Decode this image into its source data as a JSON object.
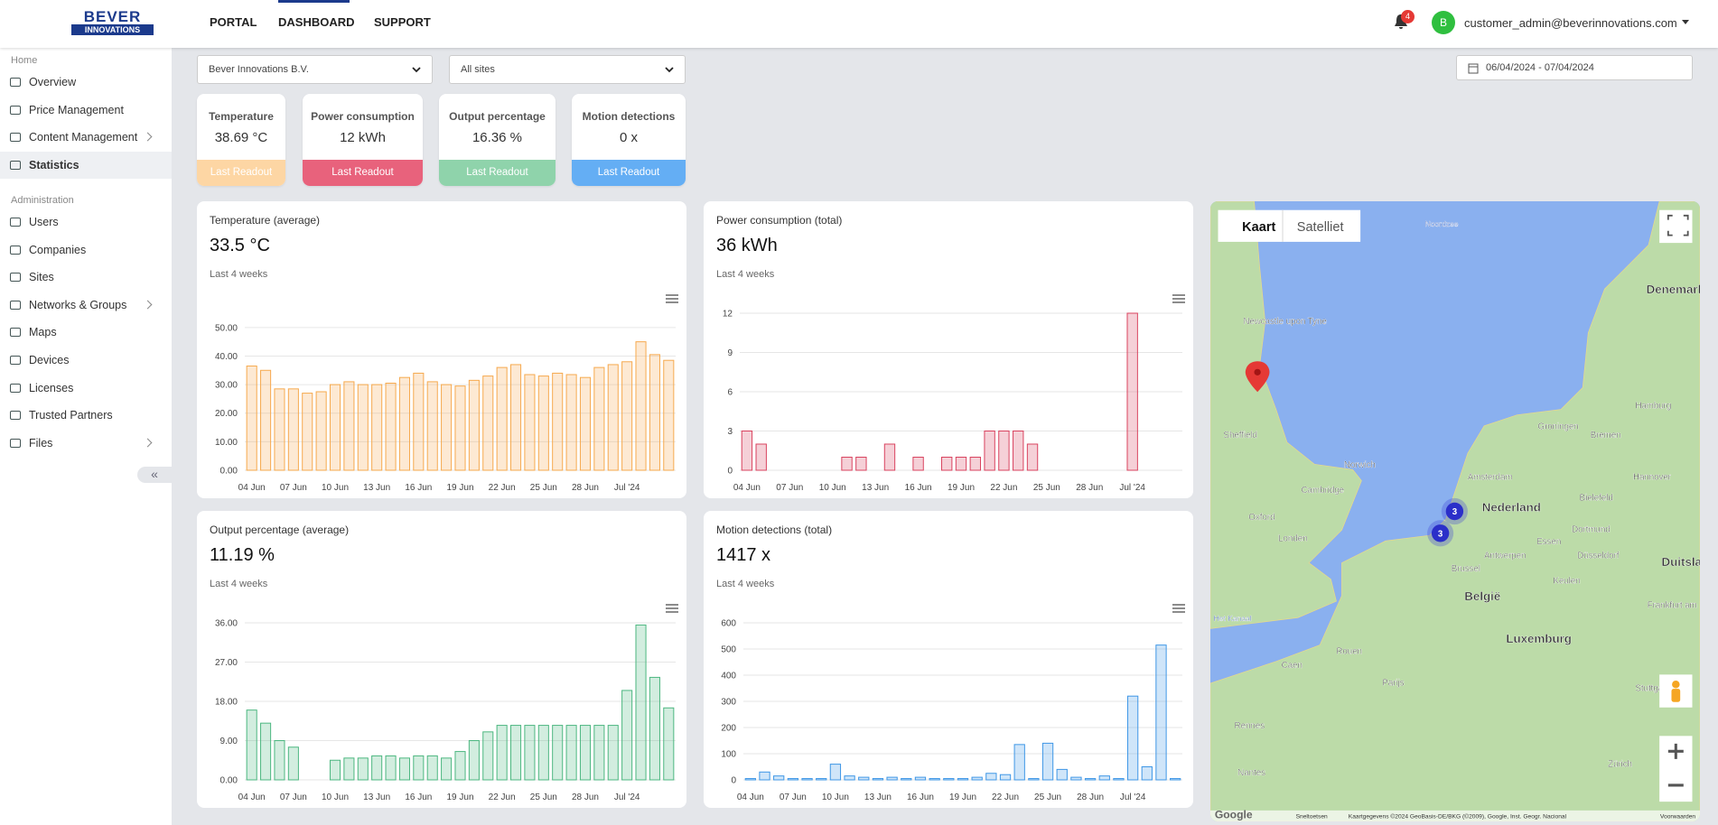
{
  "header": {
    "logo_line1": "BEVER",
    "logo_line2": "INNOVATIONS",
    "nav": [
      "PORTAL",
      "DASHBOARD",
      "SUPPORT"
    ],
    "notification_count": 4,
    "avatar": "B",
    "user": "customer_admin@beverinnovations.com"
  },
  "sidebar": {
    "sections": [
      {
        "title": "Home",
        "items": [
          "Overview",
          "Price Management",
          "Content Management",
          "Statistics"
        ]
      },
      {
        "title": "Administration",
        "items": [
          "Users",
          "Companies",
          "Sites",
          "Networks & Groups",
          "Maps",
          "Devices",
          "Licenses",
          "Trusted Partners",
          "Files"
        ]
      }
    ]
  },
  "filters": {
    "company": "Bever Innovations B.V.",
    "site": "All sites",
    "date_range": "06/04/2024 - 07/04/2024"
  },
  "cards": [
    {
      "title": "Temperature",
      "value": "38.69 °C",
      "footer": "Last Readout",
      "color": "#fdd6a4"
    },
    {
      "title": "Power consumption",
      "value": "12 kWh",
      "footer": "Last Readout",
      "color": "#e8627c"
    },
    {
      "title": "Output percentage",
      "value": "16.36 %",
      "footer": "Last Readout",
      "color": "#8fd3ab"
    },
    {
      "title": "Motion detections",
      "value": "0 x",
      "footer": "Last Readout",
      "color": "#64aef4"
    }
  ],
  "chart_data": [
    {
      "type": "bar",
      "title": "Temperature (average)",
      "headline": "33.5 °C",
      "subtitle": "Last 4 weeks",
      "color": "#f6a94e",
      "categories": [
        "04 Jun",
        null,
        null,
        "07 Jun",
        null,
        null,
        "10 Jun",
        null,
        null,
        "13 Jun",
        null,
        null,
        "16 Jun",
        null,
        null,
        "19 Jun",
        null,
        null,
        "22 Jun",
        null,
        null,
        "25 Jun",
        null,
        null,
        "28 Jun",
        null,
        null,
        "Jul '24",
        null,
        null,
        null
      ],
      "values": [
        36.5,
        35,
        28.5,
        28.5,
        27,
        27.5,
        30,
        31,
        30,
        30,
        30.5,
        32.5,
        34,
        31,
        30,
        29.5,
        31.5,
        33,
        36,
        37,
        33.5,
        33,
        34,
        33.5,
        32.5,
        36,
        37,
        38,
        45,
        40.5,
        38.5
      ],
      "ylim": [
        0,
        55
      ],
      "yticks": [
        {
          "value": 0,
          "label": "0.00"
        },
        {
          "value": 10,
          "label": "10.00"
        },
        {
          "value": 20,
          "label": "20.00"
        },
        {
          "value": 30,
          "label": "30.00"
        },
        {
          "value": 40,
          "label": "40.00"
        },
        {
          "value": 50,
          "label": "50.00"
        }
      ],
      "grid": true
    },
    {
      "type": "bar",
      "title": "Power consumption (total)",
      "headline": "36 kWh",
      "subtitle": "Last 4 weeks",
      "color": "#d9435f",
      "categories": [
        "04 Jun",
        null,
        null,
        "07 Jun",
        null,
        null,
        "10 Jun",
        null,
        null,
        "13 Jun",
        null,
        null,
        "16 Jun",
        null,
        null,
        "19 Jun",
        null,
        null,
        "22 Jun",
        null,
        null,
        "25 Jun",
        null,
        null,
        "28 Jun",
        null,
        null,
        "Jul '24",
        null,
        null,
        null
      ],
      "values": [
        3,
        2,
        0,
        0,
        0,
        0,
        0,
        1,
        1,
        0,
        2,
        0,
        1,
        0,
        1,
        1,
        1,
        3,
        3,
        3,
        2,
        0,
        0,
        0,
        0,
        0,
        0,
        12,
        0,
        0,
        0
      ],
      "ylim": [
        0,
        12
      ],
      "yticks": [
        0,
        3,
        6,
        9,
        12
      ],
      "grid": true
    },
    {
      "type": "bar",
      "title": "Output percentage (average)",
      "headline": "11.19 %",
      "subtitle": "Last 4 weeks",
      "color": "#4cb780",
      "categories": [
        "04 Jun",
        null,
        null,
        "07 Jun",
        null,
        null,
        "10 Jun",
        null,
        null,
        "13 Jun",
        null,
        null,
        "16 Jun",
        null,
        null,
        "19 Jun",
        null,
        null,
        "22 Jun",
        null,
        null,
        "25 Jun",
        null,
        null,
        "28 Jun",
        null,
        null,
        "Jul '24",
        null,
        null,
        null
      ],
      "values": [
        16,
        13,
        9,
        7.5,
        0,
        0,
        4.5,
        5,
        5,
        5.5,
        5.5,
        5,
        5.5,
        5.5,
        5,
        6.5,
        9,
        11,
        12.5,
        12.5,
        12.5,
        12.5,
        12.5,
        12.5,
        12.5,
        12.5,
        12.5,
        20.5,
        35.5,
        23.5,
        16.5
      ],
      "ylim": [
        0,
        36
      ],
      "yticks": [
        {
          "value": 0,
          "label": "0.00"
        },
        {
          "value": 9,
          "label": "9.00"
        },
        {
          "value": 18,
          "label": "18.00"
        },
        {
          "value": 27,
          "label": "27.00"
        },
        {
          "value": 36,
          "label": "36.00"
        }
      ],
      "grid": true
    },
    {
      "type": "bar",
      "title": "Motion detections (total)",
      "headline": "1417 x",
      "subtitle": "Last 4 weeks",
      "color": "#3f97e6",
      "categories": [
        "04 Jun",
        null,
        null,
        "07 Jun",
        null,
        null,
        "10 Jun",
        null,
        null,
        "13 Jun",
        null,
        null,
        "16 Jun",
        null,
        null,
        "19 Jun",
        null,
        null,
        "22 Jun",
        null,
        null,
        "25 Jun",
        null,
        null,
        "28 Jun",
        null,
        null,
        "Jul '24",
        null,
        null,
        null
      ],
      "values": [
        5,
        30,
        15,
        5,
        5,
        5,
        60,
        15,
        10,
        5,
        10,
        5,
        10,
        5,
        5,
        5,
        10,
        25,
        20,
        135,
        5,
        140,
        40,
        10,
        5,
        15,
        5,
        320,
        50,
        515,
        5
      ],
      "ylim": [
        0,
        600
      ],
      "yticks": [
        0,
        100,
        200,
        300,
        400,
        500,
        600
      ],
      "grid": true
    }
  ],
  "map": {
    "buttons": [
      "Kaart",
      "Satelliet"
    ],
    "clusters": [
      3,
      3
    ],
    "labels": [
      "Noordzee",
      "Denemarken",
      "Newcastle upon Tyne",
      "Sheffield",
      "Norwich",
      "Cambridge",
      "Oxford",
      "Londen",
      "Amsterdam",
      "Nederland",
      "Groningen",
      "Bremen",
      "Hamburg",
      "Hannover",
      "Bielefeld",
      "Dortmund",
      "Essen",
      "Antwerpen",
      "Düsseldorf",
      "Brussel",
      "België",
      "Keulen",
      "Duitsland",
      "Frankfurt am Main",
      "Luxemburg",
      "Het Kanaal",
      "Rouen",
      "Caen",
      "Parijs",
      "Stuttgart",
      "Rennes",
      "Nantes",
      "Zürich"
    ],
    "google": "Google",
    "shortcuts": "Sneltoetsen",
    "attribution": "Kaartgegevens ©2024 GeoBasis-DE/BKG (©2009), Google, Inst. Geogr. Nacional",
    "terms": "Voorwaarden"
  }
}
